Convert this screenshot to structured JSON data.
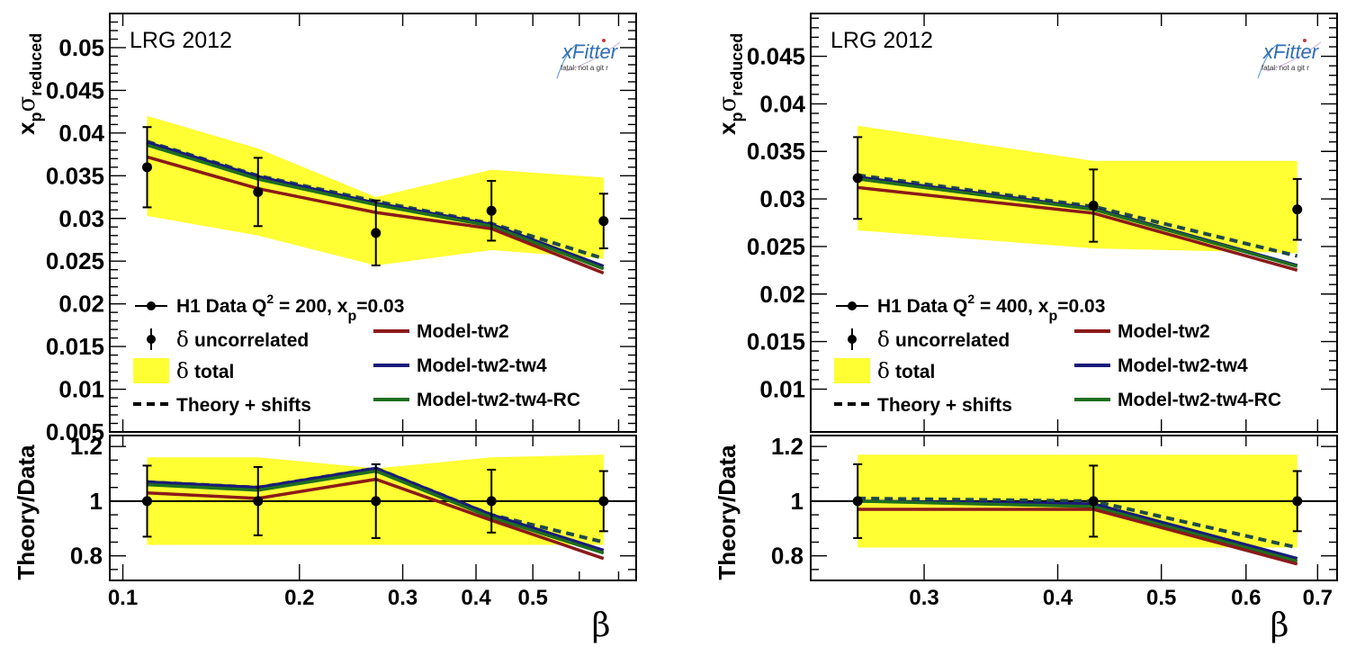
{
  "colors": {
    "band": "#ffff33",
    "data": "#000000",
    "tw2": "#8b1a1a",
    "tw4": "#1a1a7a",
    "rc": "#1e6e1e",
    "shift": "#1e4a4a"
  },
  "logo": {
    "name": "xFitter",
    "sub": "fatal: not a git r"
  },
  "chart_data": [
    {
      "type": "line",
      "title": "LRG 2012",
      "ylabel": "x_pσ_reduced",
      "ylabel_main": "x",
      "ylabel_sub1": "p",
      "ylabel_sigma": "σ",
      "ylabel_sub2": "reduced",
      "xlabel": "β",
      "ratio_ylabel": "Theory/Data",
      "xscale": "log",
      "xlim": [
        0.095,
        0.75
      ],
      "ylim": [
        0.005,
        0.054
      ],
      "ratio_ylim": [
        0.71,
        1.24
      ],
      "yticks": [
        0.005,
        0.01,
        0.015,
        0.02,
        0.025,
        0.03,
        0.035,
        0.04,
        0.045,
        0.05
      ],
      "ytick_labels": [
        "0.005",
        "0.01",
        "0.015",
        "0.02",
        "0.025",
        "0.03",
        "0.035",
        "0.04",
        "0.045",
        "0.05"
      ],
      "ratio_yticks": [
        0.8,
        1,
        1.2
      ],
      "ratio_ytick_labels": [
        "0.8",
        "1",
        "1.2"
      ],
      "xticks": [
        0.1,
        0.2,
        0.3,
        0.4,
        0.5
      ],
      "xtick_labels": [
        "0.1",
        "0.2",
        "0.3",
        "0.4",
        "0.5"
      ],
      "minor_xticks": [
        0.6,
        0.7
      ],
      "x": [
        0.11,
        0.17,
        0.27,
        0.425,
        0.66
      ],
      "data": [
        0.036,
        0.0331,
        0.0283,
        0.0309,
        0.0297
      ],
      "err_unc": [
        0.0047,
        0.004,
        0.0038,
        0.0035,
        0.0032
      ],
      "band_lo": [
        0.0303,
        0.028,
        0.0245,
        0.0263,
        0.0253
      ],
      "band_hi": [
        0.042,
        0.0382,
        0.0325,
        0.0357,
        0.0348
      ],
      "series": [
        {
          "name": "Model-tw2",
          "key": "tw2",
          "values": [
            0.0372,
            0.0335,
            0.0307,
            0.0288,
            0.0236
          ]
        },
        {
          "name": "Model-tw2-tw4",
          "key": "tw4",
          "values": [
            0.0389,
            0.0349,
            0.0318,
            0.0293,
            0.0244
          ]
        },
        {
          "name": "Model-tw2-tw4-RC",
          "key": "rc",
          "values": [
            0.0386,
            0.0346,
            0.0316,
            0.0291,
            0.0241
          ]
        },
        {
          "name": "Theory + shifts",
          "key": "shift",
          "values": [
            0.039,
            0.035,
            0.032,
            0.0294,
            0.0253
          ]
        }
      ],
      "ratio": {
        "band_lo": [
          0.84,
          0.84,
          0.84,
          0.84,
          0.84
        ],
        "band_hi": [
          1.16,
          1.16,
          1.12,
          1.16,
          1.17
        ],
        "data_err": [
          0.13,
          0.125,
          0.135,
          0.115,
          0.11
        ],
        "tw2": [
          1.03,
          1.01,
          1.08,
          0.93,
          0.79
        ],
        "tw4": [
          1.07,
          1.05,
          1.12,
          0.95,
          0.82
        ],
        "rc": [
          1.06,
          1.04,
          1.11,
          0.94,
          0.81
        ],
        "shift": [
          1.07,
          1.05,
          1.12,
          0.95,
          0.85
        ]
      },
      "legend": {
        "data_label": "H1 Data Q",
        "data_sup": "2",
        "data_q2": " = 200,  x",
        "data_xsub": "p",
        "data_xp": "=0.03",
        "unc_symbol": "δ",
        "unc_label": "uncorrelated",
        "tot_symbol": "δ",
        "tot_label": "total"
      }
    },
    {
      "type": "line",
      "title": "LRG 2012",
      "ylabel": "x_pσ_reduced",
      "ylabel_main": "x",
      "ylabel_sub1": "p",
      "ylabel_sigma": "σ",
      "ylabel_sub2": "reduced",
      "xlabel": "β",
      "ratio_ylabel": "Theory/Data",
      "xscale": "log",
      "xlim": [
        0.235,
        0.73
      ],
      "ylim": [
        0.0055,
        0.0495
      ],
      "ratio_ylim": [
        0.71,
        1.24
      ],
      "yticks": [
        0.01,
        0.015,
        0.02,
        0.025,
        0.03,
        0.035,
        0.04,
        0.045
      ],
      "ytick_labels": [
        "0.01",
        "0.015",
        "0.02",
        "0.025",
        "0.03",
        "0.035",
        "0.04",
        "0.045"
      ],
      "ratio_yticks": [
        0.8,
        1,
        1.2
      ],
      "ratio_ytick_labels": [
        "0.8",
        "1",
        "1.2"
      ],
      "xticks": [
        0.3,
        0.4,
        0.5,
        0.6,
        0.7
      ],
      "xtick_labels": [
        "0.3",
        "0.4",
        "0.5",
        "0.6",
        "0.7"
      ],
      "minor_xticks": [],
      "x": [
        0.26,
        0.432,
        0.67
      ],
      "data": [
        0.0322,
        0.0293,
        0.0289
      ],
      "err_unc": [
        0.0043,
        0.0038,
        0.0032
      ],
      "band_lo": [
        0.0267,
        0.0248,
        0.0243
      ],
      "band_hi": [
        0.0377,
        0.034,
        0.034
      ],
      "series": [
        {
          "name": "Model-tw2",
          "key": "tw2",
          "values": [
            0.0312,
            0.0285,
            0.0225
          ]
        },
        {
          "name": "Model-tw2-tw4",
          "key": "tw4",
          "values": [
            0.0323,
            0.029,
            0.023
          ]
        },
        {
          "name": "Model-tw2-tw4-RC",
          "key": "rc",
          "values": [
            0.0321,
            0.0289,
            0.0229
          ]
        },
        {
          "name": "Theory + shifts",
          "key": "shift",
          "values": [
            0.0325,
            0.0292,
            0.024
          ]
        }
      ],
      "ratio": {
        "band_lo": [
          0.83,
          0.83,
          0.83
        ],
        "band_hi": [
          1.17,
          1.17,
          1.17
        ],
        "data_err": [
          0.135,
          0.13,
          0.11
        ],
        "tw2": [
          0.97,
          0.97,
          0.77
        ],
        "tw4": [
          1.0,
          0.99,
          0.79
        ],
        "rc": [
          1.0,
          0.98,
          0.78
        ],
        "shift": [
          1.01,
          1.0,
          0.83
        ]
      },
      "legend": {
        "data_label": "H1 Data Q",
        "data_sup": "2",
        "data_q2": " = 400,  x",
        "data_xsub": "p",
        "data_xp": "=0.03",
        "unc_symbol": "δ",
        "unc_label": "uncorrelated",
        "tot_symbol": "δ",
        "tot_label": "total"
      }
    }
  ]
}
